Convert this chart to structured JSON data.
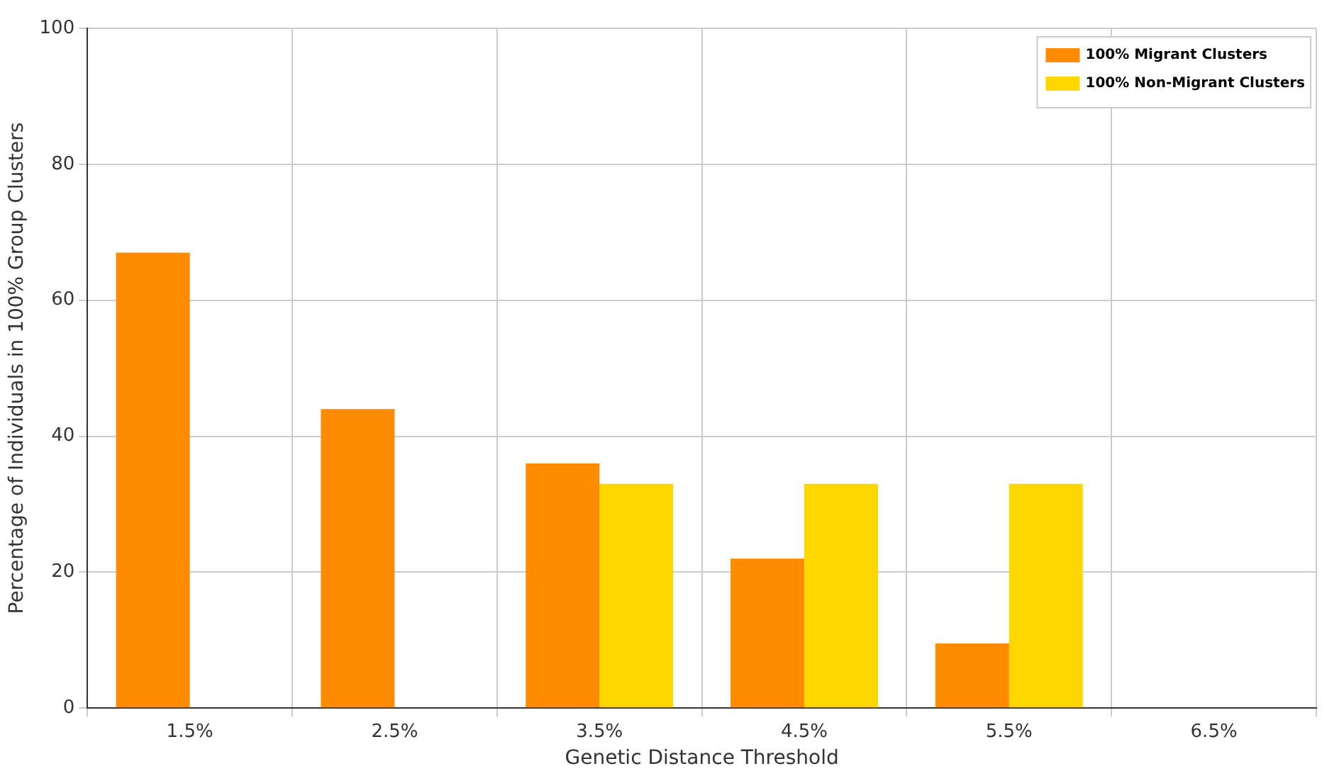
{
  "chart_data": {
    "type": "bar",
    "xlabel": "Genetic Distance Threshold",
    "ylabel": "Percentage of Individuals in 100% Group Clusters",
    "categories": [
      "1.5%",
      "2.5%",
      "3.5%",
      "4.5%",
      "5.5%",
      "6.5%"
    ],
    "series": [
      {
        "name": "100% Migrant Clusters",
        "color": "#ff8c00",
        "values": [
          67,
          44,
          36,
          22,
          9.5,
          0
        ]
      },
      {
        "name": "100% Non-Migrant Clusters",
        "color": "#ffd700",
        "values": [
          0,
          0,
          33,
          33,
          33,
          0
        ]
      }
    ],
    "ylim": [
      0,
      100
    ],
    "yticks": [
      0,
      20,
      40,
      60,
      80,
      100
    ],
    "grid": true,
    "legend": "top right"
  }
}
